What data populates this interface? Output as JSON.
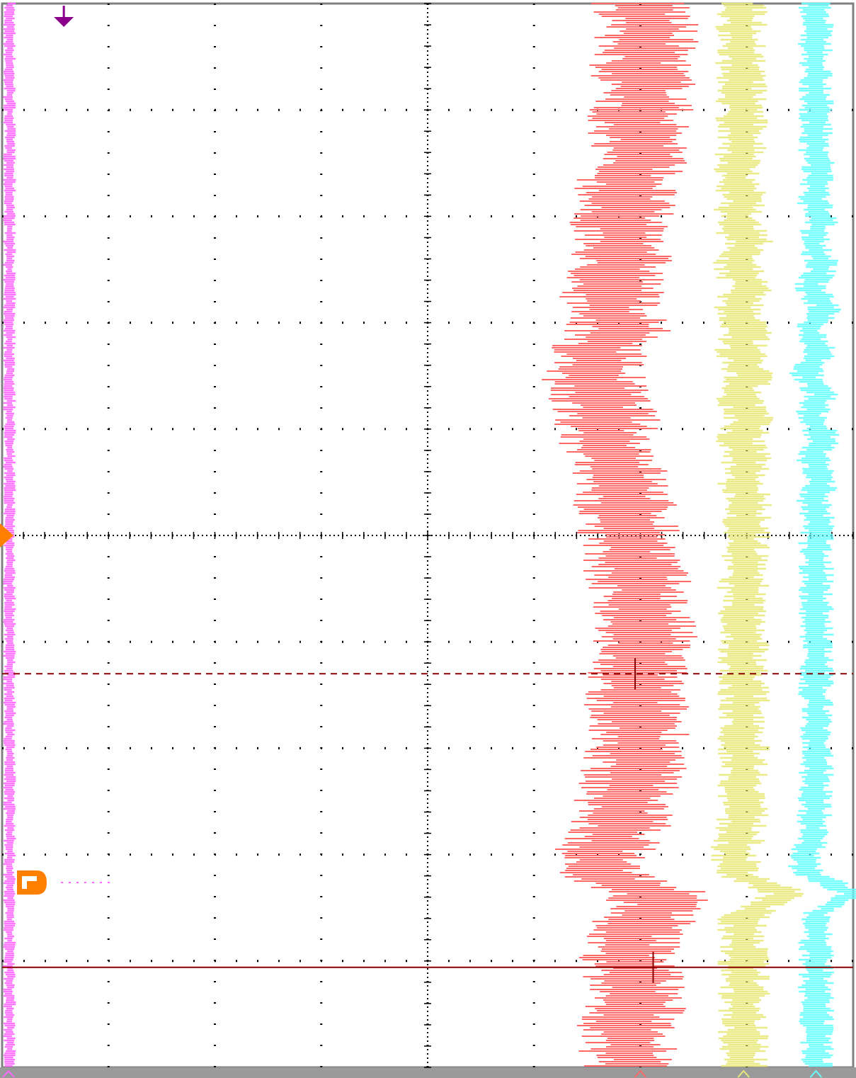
{
  "chart_data": {
    "type": "line",
    "title": "",
    "xlabel": "",
    "ylabel": "",
    "orientation": "vertical-time-axis",
    "grid": true,
    "xlim": [
      0,
      8
    ],
    "ylim": [
      0,
      10
    ],
    "colors": {
      "grid": "#000000",
      "background": "#ffffff",
      "frame": "#808080",
      "cursor": "#8b0000",
      "trigger": "#ff8000",
      "marker": "#8b008b"
    },
    "series": [
      {
        "color": "#ff66ff",
        "center": 0.06,
        "values": [
          0.07,
          0.07,
          0.07,
          0.07,
          0.07,
          0.07,
          0.07,
          0.07,
          0.07,
          0.07,
          0.07,
          0.07,
          0.07,
          0.07,
          0.07,
          0.07,
          0.07,
          0.07,
          0.07,
          0.07,
          0.07,
          0.07,
          0.07,
          0.07,
          0.07,
          0.07,
          0.07,
          0.07,
          0.07,
          0.07,
          0.07,
          0.07,
          0.07,
          0.07,
          0.07,
          0.07,
          0.07,
          0.07,
          0.07,
          0.07,
          0.07,
          0.07,
          0.07,
          0.07,
          0.07,
          0.07,
          0.07,
          0.07,
          0.07,
          0.07
        ],
        "spread": 0.06
      },
      {
        "color": "#ff6666",
        "center": 6.0,
        "values": [
          6.0,
          6.05,
          6.05,
          6.0,
          6.05,
          6.0,
          6.0,
          6.0,
          5.9,
          5.85,
          5.8,
          5.85,
          5.8,
          5.75,
          5.7,
          5.8,
          5.6,
          5.55,
          5.6,
          5.7,
          5.65,
          5.75,
          5.8,
          5.85,
          5.9,
          5.9,
          5.95,
          6.0,
          6.0,
          6.05,
          6.0,
          5.95,
          5.95,
          6.0,
          6.0,
          5.95,
          5.9,
          5.85,
          5.8,
          5.65,
          5.55,
          6.2,
          6.1,
          5.9,
          5.9,
          5.95,
          5.95,
          5.9,
          5.9,
          5.95
        ],
        "spread": 0.5
      },
      {
        "color": "#e8e87a",
        "center": 6.97,
        "values": [
          6.95,
          6.95,
          6.95,
          6.95,
          6.95,
          6.95,
          6.95,
          6.95,
          6.9,
          6.97,
          6.9,
          7.0,
          6.9,
          7.0,
          6.92,
          7.0,
          6.93,
          7.02,
          6.93,
          7.02,
          6.95,
          7.0,
          6.97,
          7.0,
          6.98,
          6.97,
          6.97,
          6.97,
          6.97,
          6.97,
          6.97,
          6.97,
          6.97,
          6.97,
          6.97,
          6.97,
          6.97,
          6.97,
          6.95,
          6.9,
          6.87,
          7.35,
          6.97,
          6.97,
          6.97,
          6.97,
          6.97,
          6.97,
          6.97,
          6.97
        ],
        "spread": 0.25
      },
      {
        "color": "#66ffff",
        "center": 7.65,
        "values": [
          7.65,
          7.65,
          7.65,
          7.65,
          7.65,
          7.65,
          7.65,
          7.65,
          7.68,
          7.62,
          7.7,
          7.62,
          7.72,
          7.6,
          7.73,
          7.58,
          7.7,
          7.55,
          7.7,
          7.6,
          7.72,
          7.62,
          7.7,
          7.63,
          7.67,
          7.65,
          7.65,
          7.65,
          7.65,
          7.65,
          7.65,
          7.65,
          7.65,
          7.65,
          7.65,
          7.65,
          7.65,
          7.65,
          7.62,
          7.58,
          7.55,
          8.0,
          7.65,
          7.65,
          7.65,
          7.65,
          7.65,
          7.65,
          7.65,
          7.65
        ],
        "spread": 0.17
      }
    ],
    "cursors": {
      "dashed_y": 6.3,
      "solid_y": 9.06
    },
    "trigger_level_y": 5.0
  }
}
